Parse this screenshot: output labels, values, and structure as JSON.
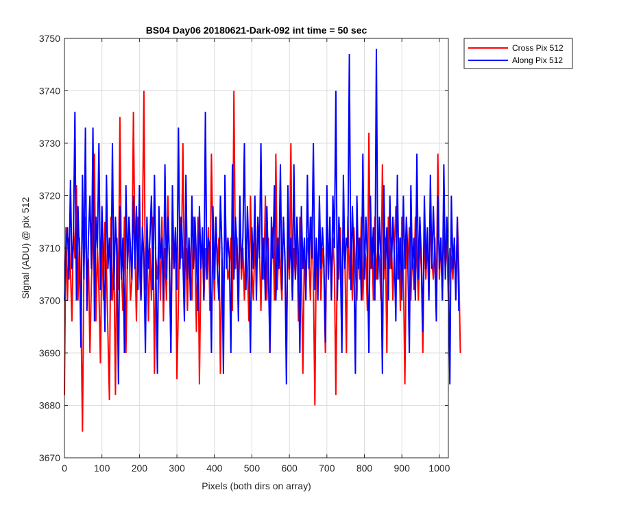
{
  "chart_data": {
    "type": "line",
    "title": "BS04 Day06 20180621-Dark-092 int time = 50 sec",
    "xlabel": "Pixels (both dirs on array)",
    "ylabel": "Signal (ADU) @ pix 512",
    "xlim": [
      0,
      1024
    ],
    "ylim": [
      3670,
      3750
    ],
    "xticks": [
      "0",
      "100",
      "200",
      "300",
      "400",
      "500",
      "600",
      "700",
      "800",
      "900",
      "1000"
    ],
    "yticks": [
      "3670",
      "3680",
      "3690",
      "3700",
      "3710",
      "3720",
      "3730",
      "3740",
      "3750"
    ],
    "grid": true,
    "legend_position": "top-right (outside plot)",
    "x_step": 4,
    "series": [
      {
        "name": "Cross Pix 512",
        "color": "#ff0000",
        "values": [
          3682,
          3714,
          3700,
          3712,
          3706,
          3696,
          3714,
          3708,
          3722,
          3700,
          3712,
          3698,
          3675,
          3706,
          3716,
          3700,
          3708,
          3690,
          3704,
          3712,
          3728,
          3696,
          3710,
          3702,
          3688,
          3712,
          3700,
          3715,
          3706,
          3694,
          3681,
          3716,
          3700,
          3708,
          3682,
          3712,
          3702,
          3735,
          3706,
          3698,
          3716,
          3690,
          3708,
          3712,
          3700,
          3704,
          3736,
          3710,
          3696,
          3716,
          3706,
          3700,
          3714,
          3740,
          3702,
          3712,
          3696,
          3710,
          3700,
          3716,
          3686,
          3708,
          3704,
          3712,
          3700,
          3716,
          3696,
          3710,
          3700,
          3720,
          3708,
          3690,
          3714,
          3706,
          3712,
          3685,
          3700,
          3716,
          3708,
          3730,
          3704,
          3710,
          3698,
          3712,
          3706,
          3700,
          3716,
          3710,
          3694,
          3716,
          3684,
          3708,
          3712,
          3700,
          3710,
          3704,
          3714,
          3698,
          3728,
          3710,
          3700,
          3716,
          3706,
          3712,
          3686,
          3708,
          3700,
          3716,
          3710,
          3704,
          3706,
          3712,
          3698,
          3740,
          3706,
          3712,
          3700,
          3716,
          3704,
          3710,
          3700,
          3712,
          3706,
          3696,
          3720,
          3706,
          3700,
          3712,
          3704,
          3716,
          3710,
          3698,
          3712,
          3704,
          3720,
          3700,
          3712,
          3690,
          3706,
          3714,
          3700,
          3728,
          3702,
          3712,
          3706,
          3700,
          3716,
          3708,
          3690,
          3712,
          3704,
          3730,
          3700,
          3710,
          3704,
          3712,
          3696,
          3716,
          3708,
          3686,
          3710,
          3702,
          3712,
          3708,
          3700,
          3716,
          3704,
          3680,
          3712,
          3704,
          3714,
          3700,
          3710,
          3706,
          3690,
          3716,
          3704,
          3714,
          3700,
          3712,
          3706,
          3682,
          3710,
          3704,
          3714,
          3700,
          3712,
          3708,
          3690,
          3716,
          3704,
          3712,
          3700,
          3714,
          3706,
          3700,
          3712,
          3704,
          3716,
          3700,
          3710,
          3708,
          3698,
          3732,
          3706,
          3712,
          3700,
          3716,
          3704,
          3710,
          3708,
          3700,
          3726,
          3704,
          3712,
          3690,
          3716,
          3706,
          3712,
          3700,
          3710,
          3718,
          3704,
          3712,
          3698,
          3716,
          3706,
          3684,
          3712,
          3706,
          3714,
          3700,
          3710,
          3702,
          3716,
          3708,
          3700,
          3712,
          3706,
          3690,
          3714,
          3704,
          3712,
          3700,
          3716,
          3708,
          3704,
          3712,
          3700,
          3728,
          3704,
          3712,
          3700,
          3714,
          3706,
          3712,
          3700,
          3710,
          3708,
          3704,
          3712,
          3700,
          3716,
          3706,
          3690
        ]
      },
      {
        "name": "Along Pix 512",
        "color": "#0000ff",
        "values": [
          3700,
          3710,
          3714,
          3704,
          3723,
          3706,
          3712,
          3736,
          3700,
          3718,
          3708,
          3691,
          3724,
          3704,
          3733,
          3698,
          3712,
          3720,
          3706,
          3733,
          3696,
          3716,
          3710,
          3730,
          3702,
          3718,
          3708,
          3694,
          3724,
          3706,
          3712,
          3700,
          3730,
          3702,
          3716,
          3708,
          3684,
          3718,
          3704,
          3712,
          3690,
          3722,
          3706,
          3716,
          3710,
          3704,
          3720,
          3706,
          3718,
          3702,
          3722,
          3700,
          3714,
          3708,
          3690,
          3716,
          3706,
          3712,
          3720,
          3702,
          3724,
          3706,
          3686,
          3718,
          3708,
          3712,
          3700,
          3726,
          3704,
          3716,
          3708,
          3690,
          3722,
          3706,
          3714,
          3702,
          3733,
          3706,
          3716,
          3708,
          3696,
          3724,
          3704,
          3712,
          3700,
          3720,
          3706,
          3716,
          3708,
          3698,
          3718,
          3706,
          3714,
          3700,
          3736,
          3704,
          3712,
          3710,
          3690,
          3718,
          3704,
          3716,
          3706,
          3700,
          3720,
          3710,
          3686,
          3724,
          3706,
          3712,
          3708,
          3690,
          3726,
          3704,
          3716,
          3710,
          3696,
          3720,
          3706,
          3712,
          3730,
          3702,
          3718,
          3708,
          3690,
          3714,
          3706,
          3720,
          3700,
          3716,
          3708,
          3730,
          3704,
          3712,
          3700,
          3718,
          3706,
          3690,
          3716,
          3708,
          3722,
          3700,
          3712,
          3706,
          3726,
          3702,
          3716,
          3708,
          3684,
          3722,
          3706,
          3712,
          3700,
          3726,
          3704,
          3716,
          3708,
          3690,
          3718,
          3706,
          3712,
          3700,
          3724,
          3706,
          3716,
          3708,
          3730,
          3702,
          3712,
          3700,
          3720,
          3706,
          3714,
          3708,
          3692,
          3722,
          3704,
          3716,
          3700,
          3720,
          3710,
          3740,
          3700,
          3716,
          3708,
          3690,
          3724,
          3706,
          3712,
          3710,
          3747,
          3702,
          3718,
          3708,
          3686,
          3720,
          3706,
          3712,
          3700,
          3728,
          3704,
          3716,
          3708,
          3690,
          3720,
          3706,
          3714,
          3700,
          3748,
          3704,
          3716,
          3708,
          3686,
          3722,
          3706,
          3714,
          3700,
          3720,
          3706,
          3716,
          3708,
          3696,
          3724,
          3704,
          3712,
          3700,
          3720,
          3706,
          3716,
          3708,
          3690,
          3722,
          3706,
          3712,
          3700,
          3728,
          3704,
          3716,
          3708,
          3694,
          3720,
          3706,
          3714,
          3700,
          3724,
          3706,
          3718,
          3708,
          3696,
          3720,
          3706,
          3712,
          3700,
          3726,
          3704,
          3716,
          3708,
          3684,
          3720,
          3706,
          3712,
          3700,
          3716,
          3698
        ]
      }
    ]
  }
}
